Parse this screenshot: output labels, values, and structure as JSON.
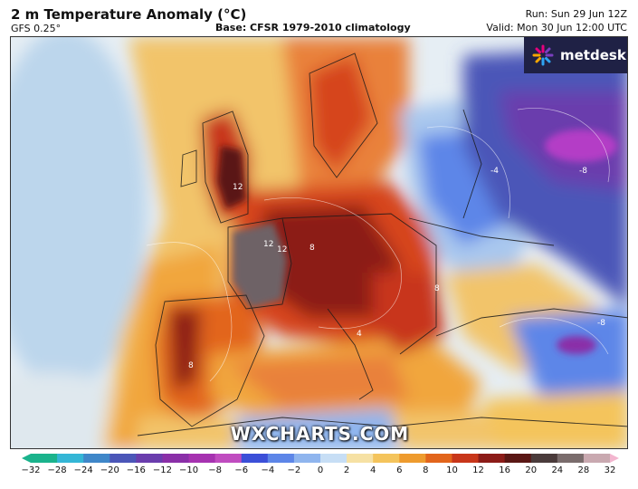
{
  "header": {
    "title": "2 m Temperature Anomaly (°C)",
    "model": "GFS 0.25°",
    "base": "Base: CFSR 1979-2010 climatology",
    "run": "Run: Sun 29 Jun 12Z",
    "valid": "Valid: Mon 30 Jun 12:00 UTC"
  },
  "branding": {
    "logo_text": "metdesk",
    "watermark": "WXCHARTS.COM"
  },
  "colorbar": {
    "ticks": [
      "−32",
      "−28",
      "−24",
      "−20",
      "−16",
      "−12",
      "−10",
      "−8",
      "−6",
      "−4",
      "−2",
      "0",
      "2",
      "4",
      "6",
      "8",
      "10",
      "12",
      "16",
      "20",
      "24",
      "28",
      "32"
    ],
    "colors": [
      "#1bb38c",
      "#34b6d6",
      "#3f87c9",
      "#4b56b8",
      "#6a3dad",
      "#8a2fa8",
      "#a632b0",
      "#c04cc0",
      "#3b4fd8",
      "#5d86e8",
      "#8fb5ee",
      "#c7def5",
      "#f6e1a4",
      "#f4c45c",
      "#ee9b2e",
      "#e2651c",
      "#c8361a",
      "#8c1c18",
      "#5a1714",
      "#4a3b3b",
      "#7a6c6c",
      "#c9a9b0",
      "#f3b6cf"
    ]
  },
  "map_labels": [
    {
      "text": "12",
      "tag": "uk"
    },
    {
      "text": "12",
      "tag": "france-a"
    },
    {
      "text": "12",
      "tag": "france-b"
    },
    {
      "text": "-8",
      "tag": "russia"
    },
    {
      "text": "-8",
      "tag": "turkey"
    },
    {
      "text": "8",
      "tag": "iberia"
    },
    {
      "text": "8",
      "tag": "alps"
    },
    {
      "text": "8",
      "tag": "balkans"
    },
    {
      "text": "4",
      "tag": "italy"
    },
    {
      "text": "-4",
      "tag": "east"
    }
  ],
  "colors": {
    "ocean": "#d8e8f4",
    "warm": "#f1a63c",
    "hot": "#d6451a",
    "very_hot": "#5a1714",
    "extreme": "#6e6266",
    "cool": "#8fb5ee",
    "cold": "#4b56b8",
    "very_cold": "#b43cc6"
  }
}
